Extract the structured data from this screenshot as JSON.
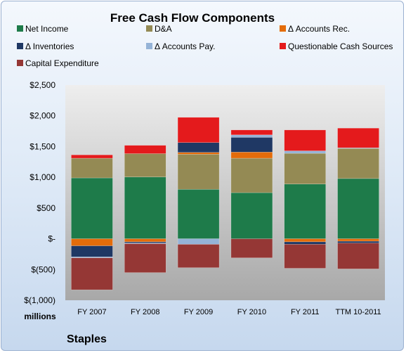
{
  "chart_data": {
    "type": "bar",
    "stacked": true,
    "title": "Free Cash Flow Components",
    "unit_label": "millions",
    "company": "Staples",
    "ylim": [
      -1000,
      2500
    ],
    "yticks": [
      -1000,
      -500,
      0,
      500,
      1000,
      1500,
      2000,
      2500
    ],
    "ytick_labels": [
      "$(1,000)",
      "$(500)",
      "$-",
      "$500",
      "$1,000",
      "$1,500",
      "$2,000",
      "$2,500"
    ],
    "categories": [
      "FY 2007",
      "FY 2008",
      "FY 2009",
      "FY 2010",
      "FY 2011",
      "TTM 10-2011"
    ],
    "series": [
      {
        "name": "Net Income",
        "color": "#1e7b4a",
        "values": [
          990,
          1005,
          805,
          750,
          890,
          980
        ]
      },
      {
        "name": "D&A",
        "color": "#948a54",
        "values": [
          320,
          380,
          570,
          560,
          500,
          490
        ]
      },
      {
        "name": "Δ Accounts Rec.",
        "color": "#e46c0a",
        "values": [
          -115,
          -50,
          30,
          100,
          -50,
          -40
        ]
      },
      {
        "name": "Δ Inventories",
        "color": "#1f3864",
        "values": [
          -180,
          -20,
          160,
          240,
          -40,
          -30
        ]
      },
      {
        "name": "Δ Accounts Pay.",
        "color": "#95b3d7",
        "values": [
          -15,
          -10,
          -90,
          40,
          40,
          10
        ]
      },
      {
        "name": "Questionable Cash Sources",
        "color": "#e41a1c",
        "values": [
          55,
          135,
          410,
          80,
          340,
          320
        ]
      },
      {
        "name": "Capital Expenditure",
        "color": "#953735",
        "values": [
          -520,
          -470,
          -380,
          -310,
          -390,
          -420
        ]
      }
    ],
    "legend_position": "top",
    "grid": false
  }
}
